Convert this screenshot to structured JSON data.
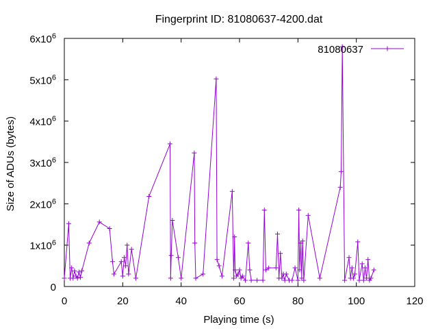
{
  "chart_data": {
    "type": "line",
    "title": "Fingerprint ID: 81080637-4200.dat",
    "xlabel": "Playing time (s)",
    "ylabel": "Size of ADUs (bytes)",
    "xlim": [
      0,
      120
    ],
    "ylim": [
      0,
      6000000
    ],
    "x_ticks": [
      0,
      20,
      40,
      60,
      80,
      100,
      120
    ],
    "y_ticks": [
      {
        "value": 0,
        "base": "0",
        "exp": ""
      },
      {
        "value": 1000000,
        "base": "1x10",
        "exp": "6"
      },
      {
        "value": 2000000,
        "base": "2x10",
        "exp": "6"
      },
      {
        "value": 3000000,
        "base": "3x10",
        "exp": "6"
      },
      {
        "value": 4000000,
        "base": "4x10",
        "exp": "6"
      },
      {
        "value": 5000000,
        "base": "5x10",
        "exp": "6"
      },
      {
        "value": 6000000,
        "base": "6x10",
        "exp": "6"
      }
    ],
    "legend_position": "top-right",
    "color": "#9400d3",
    "series": [
      {
        "name": "81080637",
        "x": [
          0,
          1.5,
          2,
          2.5,
          3,
          3.5,
          4,
          4.5,
          5,
          5.5,
          6,
          8.5,
          12,
          15.5,
          16.5,
          17,
          19.5,
          20,
          20.5,
          21,
          21.5,
          22,
          23,
          24.5,
          29,
          36.2,
          36.4,
          36.6,
          37,
          39,
          40,
          44.5,
          44.7,
          45,
          47.5,
          52,
          52.3,
          53,
          54,
          57.5,
          58,
          58.3,
          58.5,
          59,
          59.5,
          60,
          60.5,
          61,
          62,
          63,
          63.5,
          64,
          66,
          68,
          68.5,
          69,
          70,
          72.5,
          73,
          73.5,
          74,
          74.5,
          75,
          75.5,
          76,
          77,
          78,
          79,
          80,
          80.3,
          80.6,
          81,
          81.3,
          81.6,
          82,
          83.5,
          87.5,
          94.5,
          94.8,
          95.2,
          96,
          97.5,
          98,
          98.5,
          99,
          99.5,
          100.5,
          101,
          102,
          102.5,
          103,
          103.5,
          104,
          104.5,
          105,
          106
        ],
        "values": [
          200000,
          1520000,
          200000,
          450000,
          200000,
          380000,
          250000,
          200000,
          350000,
          220000,
          380000,
          1050000,
          1560000,
          1400000,
          600000,
          300000,
          600000,
          250000,
          700000,
          500000,
          1000000,
          300000,
          900000,
          200000,
          2180000,
          3450000,
          200000,
          750000,
          1600000,
          700000,
          200000,
          3230000,
          1050000,
          200000,
          300000,
          5020000,
          650000,
          500000,
          250000,
          2300000,
          200000,
          1200000,
          400000,
          250000,
          300000,
          400000,
          200000,
          250000,
          150000,
          1050000,
          400000,
          150000,
          150000,
          150000,
          1850000,
          400000,
          450000,
          450000,
          1270000,
          200000,
          800000,
          200000,
          300000,
          150000,
          300000,
          150000,
          150000,
          450000,
          150000,
          1850000,
          400000,
          1050000,
          200000,
          1100000,
          150000,
          1720000,
          200000,
          2400000,
          2780000,
          5800000,
          150000,
          700000,
          200000,
          450000,
          200000,
          300000,
          1080000,
          150000,
          550000,
          150000,
          450000,
          200000,
          650000,
          150000,
          200000,
          400000
        ]
      }
    ]
  }
}
